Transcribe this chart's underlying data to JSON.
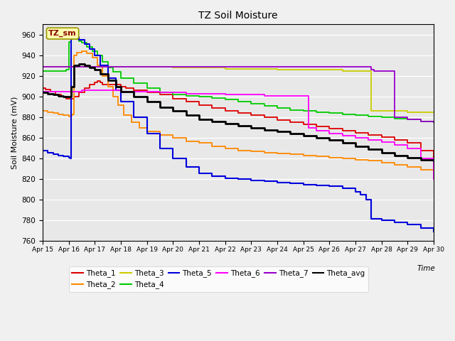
{
  "title": "TZ Soil Moisture",
  "ylabel": "Soil Moisture (mV)",
  "xlabel_text": "Time",
  "ylim": [
    760,
    970
  ],
  "yticks": [
    760,
    780,
    800,
    820,
    840,
    860,
    880,
    900,
    920,
    940,
    960
  ],
  "xlim": [
    0,
    15
  ],
  "label_box": "TZ_sm",
  "plot_bg": "#e8e8e8",
  "fig_bg": "#f0f0f0",
  "xtick_labels": [
    "Apr 15",
    "Apr 16",
    "Apr 17",
    "Apr 18",
    "Apr 19",
    "Apr 20",
    "Apr 21",
    "Apr 22",
    "Apr 23",
    "Apr 24",
    "Apr 25",
    "Apr 26",
    "Apr 27",
    "Apr 28",
    "Apr 29",
    "Apr 30"
  ],
  "series": {
    "Theta_1": {
      "color": "#dd0000",
      "lw": 1.3,
      "x": [
        0,
        0.1,
        0.3,
        0.5,
        0.7,
        0.9,
        1.0,
        1.2,
        1.4,
        1.6,
        1.8,
        2.0,
        2.1,
        2.2,
        2.3,
        2.5,
        2.8,
        3.0,
        3.2,
        3.5,
        4.0,
        4.5,
        5.0,
        5.5,
        6.0,
        6.5,
        7.0,
        7.5,
        8.0,
        8.5,
        9.0,
        9.5,
        10.0,
        10.5,
        11.0,
        11.5,
        12.0,
        12.5,
        13.0,
        13.5,
        14.0,
        14.5,
        15.0
      ],
      "y": [
        908,
        907,
        905,
        902,
        900,
        898,
        898,
        900,
        904,
        908,
        912,
        914,
        915,
        914,
        912,
        912,
        912,
        910,
        908,
        906,
        904,
        902,
        898,
        895,
        892,
        889,
        886,
        884,
        882,
        880,
        877,
        875,
        873,
        871,
        869,
        867,
        865,
        863,
        861,
        858,
        855,
        848,
        840
      ]
    },
    "Theta_2": {
      "color": "#ff8800",
      "lw": 1.3,
      "x": [
        0,
        0.2,
        0.4,
        0.6,
        0.8,
        1.0,
        1.1,
        1.15,
        1.2,
        1.3,
        1.5,
        1.7,
        1.9,
        2.1,
        2.3,
        2.5,
        2.7,
        2.9,
        3.1,
        3.4,
        3.7,
        4.0,
        4.5,
        5.0,
        5.5,
        6.0,
        6.5,
        7.0,
        7.5,
        8.0,
        8.5,
        9.0,
        9.5,
        10.0,
        10.5,
        11.0,
        11.5,
        12.0,
        12.5,
        13.0,
        13.5,
        14.0,
        14.5,
        15.0
      ],
      "y": [
        886,
        885,
        884,
        883,
        882,
        881,
        882,
        883,
        940,
        943,
        944,
        942,
        938,
        930,
        920,
        910,
        900,
        892,
        882,
        875,
        870,
        866,
        863,
        860,
        857,
        855,
        852,
        850,
        848,
        847,
        846,
        845,
        844,
        843,
        842,
        841,
        840,
        839,
        838,
        836,
        834,
        832,
        829,
        828
      ]
    },
    "Theta_3": {
      "color": "#cccc00",
      "lw": 1.3,
      "x": [
        0,
        1.0,
        2.0,
        3.0,
        4.0,
        5.0,
        6.0,
        7.0,
        8.0,
        9.0,
        10.0,
        11.0,
        11.5,
        12.0,
        12.5,
        12.6,
        13.0,
        13.5,
        14.0,
        14.5,
        15.0
      ],
      "y": [
        929,
        929,
        929,
        929,
        929,
        928,
        928,
        927,
        927,
        926,
        926,
        926,
        925,
        925,
        925,
        886,
        886,
        886,
        885,
        885,
        885
      ]
    },
    "Theta_4": {
      "color": "#00cc00",
      "lw": 1.3,
      "x": [
        0,
        0.5,
        0.9,
        1.0,
        1.1,
        1.2,
        1.3,
        1.4,
        1.5,
        1.7,
        1.9,
        2.1,
        2.3,
        2.5,
        2.7,
        3.0,
        3.5,
        4.0,
        4.5,
        5.0,
        5.5,
        6.0,
        6.5,
        7.0,
        7.5,
        8.0,
        8.5,
        9.0,
        9.5,
        10.0,
        10.5,
        11.0,
        11.5,
        12.0,
        12.5,
        13.0,
        13.5,
        14.0,
        14.5,
        15.0
      ],
      "y": [
        925,
        925,
        926,
        953,
        956,
        957,
        956,
        954,
        952,
        948,
        944,
        940,
        934,
        928,
        924,
        918,
        913,
        908,
        904,
        902,
        901,
        900,
        899,
        897,
        895,
        893,
        891,
        889,
        887,
        886,
        885,
        884,
        883,
        882,
        881,
        880,
        879,
        878,
        876,
        875
      ]
    },
    "Theta_5": {
      "color": "#0000dd",
      "lw": 1.5,
      "x": [
        0,
        0.2,
        0.4,
        0.6,
        0.8,
        1.0,
        1.05,
        1.1,
        1.2,
        1.4,
        1.6,
        1.8,
        2.0,
        2.2,
        2.5,
        2.8,
        3.0,
        3.5,
        4.0,
        4.5,
        5.0,
        5.5,
        6.0,
        6.5,
        7.0,
        7.5,
        8.0,
        8.5,
        9.0,
        9.5,
        10.0,
        10.5,
        11.0,
        11.5,
        12.0,
        12.2,
        12.4,
        12.6,
        13.0,
        13.5,
        14.0,
        14.5,
        15.0
      ],
      "y": [
        848,
        846,
        844,
        843,
        842,
        841,
        840,
        958,
        958,
        955,
        951,
        946,
        940,
        930,
        918,
        906,
        895,
        880,
        864,
        850,
        840,
        832,
        826,
        823,
        821,
        820,
        819,
        818,
        817,
        816,
        815,
        814,
        813,
        811,
        808,
        805,
        800,
        782,
        780,
        778,
        776,
        773,
        769
      ]
    },
    "Theta_6": {
      "color": "#ff00ff",
      "lw": 1.3,
      "x": [
        0,
        0.5,
        1.0,
        1.5,
        2.0,
        2.5,
        3.0,
        3.5,
        4.0,
        4.5,
        5.0,
        5.5,
        6.0,
        6.5,
        7.0,
        7.5,
        8.0,
        8.5,
        9.0,
        9.5,
        10.0,
        10.2,
        10.5,
        11.0,
        11.5,
        12.0,
        12.5,
        13.0,
        13.5,
        14.0,
        14.5,
        15.0
      ],
      "y": [
        905,
        905,
        905,
        906,
        906,
        906,
        905,
        905,
        905,
        904,
        904,
        903,
        903,
        903,
        902,
        902,
        902,
        901,
        901,
        901,
        901,
        870,
        867,
        864,
        862,
        860,
        858,
        856,
        853,
        850,
        840,
        820
      ]
    },
    "Theta_7": {
      "color": "#9900cc",
      "lw": 1.3,
      "x": [
        0,
        1.0,
        2.0,
        3.0,
        4.0,
        5.0,
        6.0,
        7.0,
        8.0,
        9.0,
        10.0,
        11.0,
        11.5,
        12.0,
        12.5,
        12.6,
        12.7,
        13.0,
        13.5,
        14.0,
        14.5,
        15.0
      ],
      "y": [
        929,
        929,
        929,
        929,
        929,
        929,
        929,
        929,
        929,
        929,
        929,
        929,
        929,
        929,
        929,
        926,
        925,
        925,
        880,
        878,
        876,
        875
      ]
    },
    "Theta_avg": {
      "color": "#000000",
      "lw": 2.0,
      "x": [
        0,
        0.2,
        0.4,
        0.6,
        0.8,
        1.0,
        1.1,
        1.2,
        1.4,
        1.6,
        1.8,
        2.0,
        2.2,
        2.5,
        2.8,
        3.0,
        3.5,
        4.0,
        4.5,
        5.0,
        5.5,
        6.0,
        6.5,
        7.0,
        7.5,
        8.0,
        8.5,
        9.0,
        9.5,
        10.0,
        10.5,
        11.0,
        11.5,
        12.0,
        12.5,
        13.0,
        13.5,
        14.0,
        14.5,
        15.0
      ],
      "y": [
        904,
        903,
        902,
        901,
        900,
        900,
        910,
        930,
        932,
        930,
        928,
        926,
        922,
        916,
        910,
        905,
        900,
        895,
        890,
        886,
        882,
        878,
        876,
        874,
        872,
        870,
        868,
        866,
        864,
        862,
        860,
        858,
        855,
        852,
        849,
        846,
        843,
        841,
        839,
        838
      ]
    }
  },
  "legend_order": [
    "Theta_1",
    "Theta_2",
    "Theta_3",
    "Theta_4",
    "Theta_5",
    "Theta_6",
    "Theta_7",
    "Theta_avg"
  ]
}
